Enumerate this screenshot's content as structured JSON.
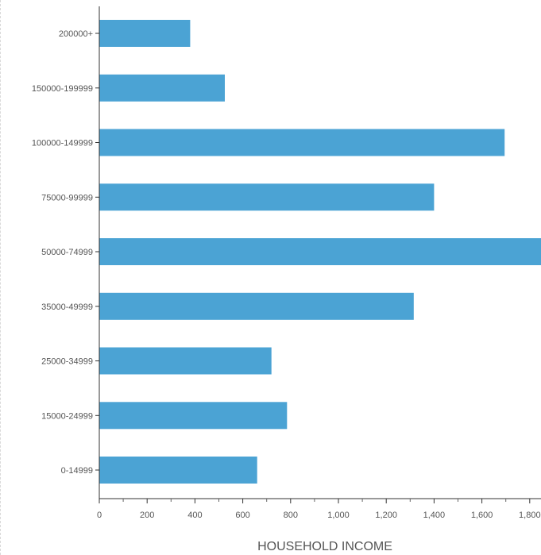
{
  "chart_data": {
    "type": "bar",
    "orientation": "horizontal",
    "title": "",
    "xlabel": "HOUSEHOLD INCOME",
    "ylabel": "",
    "categories": [
      "200000+",
      "150000-199999",
      "100000-149999",
      "75000-99999",
      "50000-74999",
      "35000-49999",
      "25000-34999",
      "15000-24999",
      "0-14999"
    ],
    "values": [
      380,
      525,
      1695,
      1400,
      1930,
      1315,
      720,
      785,
      660
    ],
    "xlim": [
      0,
      1850
    ],
    "x_ticks": [
      0,
      200,
      400,
      600,
      800,
      1000,
      1200,
      1400,
      1600,
      1800
    ],
    "x_tick_labels": [
      "0",
      "200",
      "400",
      "600",
      "800",
      "1,000",
      "1,200",
      "1,400",
      "1,600",
      "1,800"
    ],
    "grid": false,
    "legend": "none",
    "bar_color": "#4ba3d4"
  }
}
